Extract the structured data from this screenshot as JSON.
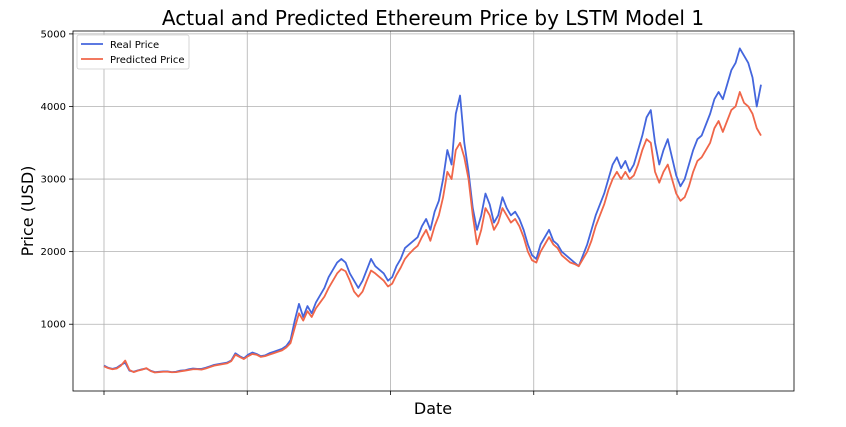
{
  "chart_data": {
    "type": "line",
    "title": "Actual and Predicted Ethereum Price by LSTM Model 1",
    "xlabel": "Date",
    "ylabel": "Price (USD)",
    "ylim": [
      80,
      5040
    ],
    "yticks": [
      1000,
      2000,
      3000,
      4000,
      5000
    ],
    "grid": true,
    "legend_position": "top-left",
    "x_tick_count": 5,
    "series": [
      {
        "name": "Real Price",
        "color": "#4466dd",
        "values": [
          430,
          400,
          385,
          400,
          440,
          470,
          360,
          345,
          365,
          380,
          390,
          360,
          340,
          345,
          350,
          350,
          340,
          345,
          360,
          365,
          380,
          390,
          385,
          385,
          400,
          420,
          440,
          450,
          460,
          470,
          500,
          600,
          560,
          530,
          580,
          610,
          590,
          560,
          570,
          600,
          620,
          640,
          660,
          700,
          780,
          1050,
          1280,
          1100,
          1250,
          1150,
          1300,
          1400,
          1500,
          1650,
          1750,
          1850,
          1900,
          1850,
          1700,
          1600,
          1500,
          1600,
          1750,
          1900,
          1800,
          1750,
          1700,
          1600,
          1650,
          1800,
          1900,
          2050,
          2100,
          2150,
          2200,
          2350,
          2450,
          2300,
          2550,
          2700,
          3000,
          3400,
          3200,
          3900,
          4150,
          3500,
          3100,
          2600,
          2300,
          2500,
          2800,
          2650,
          2400,
          2500,
          2750,
          2600,
          2500,
          2550,
          2450,
          2300,
          2100,
          1950,
          1900,
          2100,
          2200,
          2300,
          2150,
          2100,
          2000,
          1950,
          1900,
          1850,
          1800,
          1950,
          2100,
          2300,
          2500,
          2650,
          2800,
          3000,
          3200,
          3300,
          3150,
          3250,
          3100,
          3200,
          3400,
          3600,
          3850,
          3950,
          3500,
          3200,
          3400,
          3550,
          3300,
          3050,
          2900,
          3000,
          3200,
          3400,
          3550,
          3600,
          3750,
          3900,
          4100,
          4200,
          4100,
          4300,
          4500,
          4600,
          4800,
          4700,
          4600,
          4400,
          4000,
          4300
        ]
      },
      {
        "name": "Predicted Price",
        "color": "#f06649",
        "values": [
          420,
          395,
          380,
          390,
          430,
          500,
          370,
          340,
          360,
          375,
          395,
          355,
          335,
          340,
          345,
          345,
          338,
          340,
          350,
          360,
          370,
          380,
          380,
          375,
          390,
          410,
          430,
          440,
          450,
          460,
          490,
          580,
          550,
          520,
          560,
          590,
          580,
          550,
          560,
          580,
          600,
          620,
          640,
          680,
          740,
          950,
          1150,
          1050,
          1180,
          1100,
          1220,
          1300,
          1380,
          1500,
          1600,
          1700,
          1760,
          1730,
          1600,
          1450,
          1380,
          1450,
          1600,
          1740,
          1700,
          1650,
          1600,
          1520,
          1560,
          1680,
          1780,
          1900,
          1970,
          2030,
          2080,
          2200,
          2300,
          2150,
          2350,
          2500,
          2750,
          3100,
          3000,
          3400,
          3500,
          3300,
          3000,
          2500,
          2100,
          2300,
          2600,
          2500,
          2300,
          2400,
          2600,
          2500,
          2400,
          2450,
          2350,
          2200,
          2000,
          1880,
          1850,
          2000,
          2100,
          2200,
          2100,
          2050,
          1950,
          1900,
          1850,
          1830,
          1800,
          1900,
          2000,
          2150,
          2350,
          2500,
          2650,
          2850,
          3000,
          3100,
          3000,
          3100,
          3000,
          3050,
          3200,
          3400,
          3550,
          3500,
          3100,
          2950,
          3100,
          3200,
          3000,
          2800,
          2700,
          2750,
          2900,
          3100,
          3250,
          3300,
          3400,
          3500,
          3700,
          3800,
          3650,
          3800,
          3950,
          4000,
          4200,
          4050,
          4000,
          3900,
          3700,
          3600
        ]
      }
    ]
  }
}
